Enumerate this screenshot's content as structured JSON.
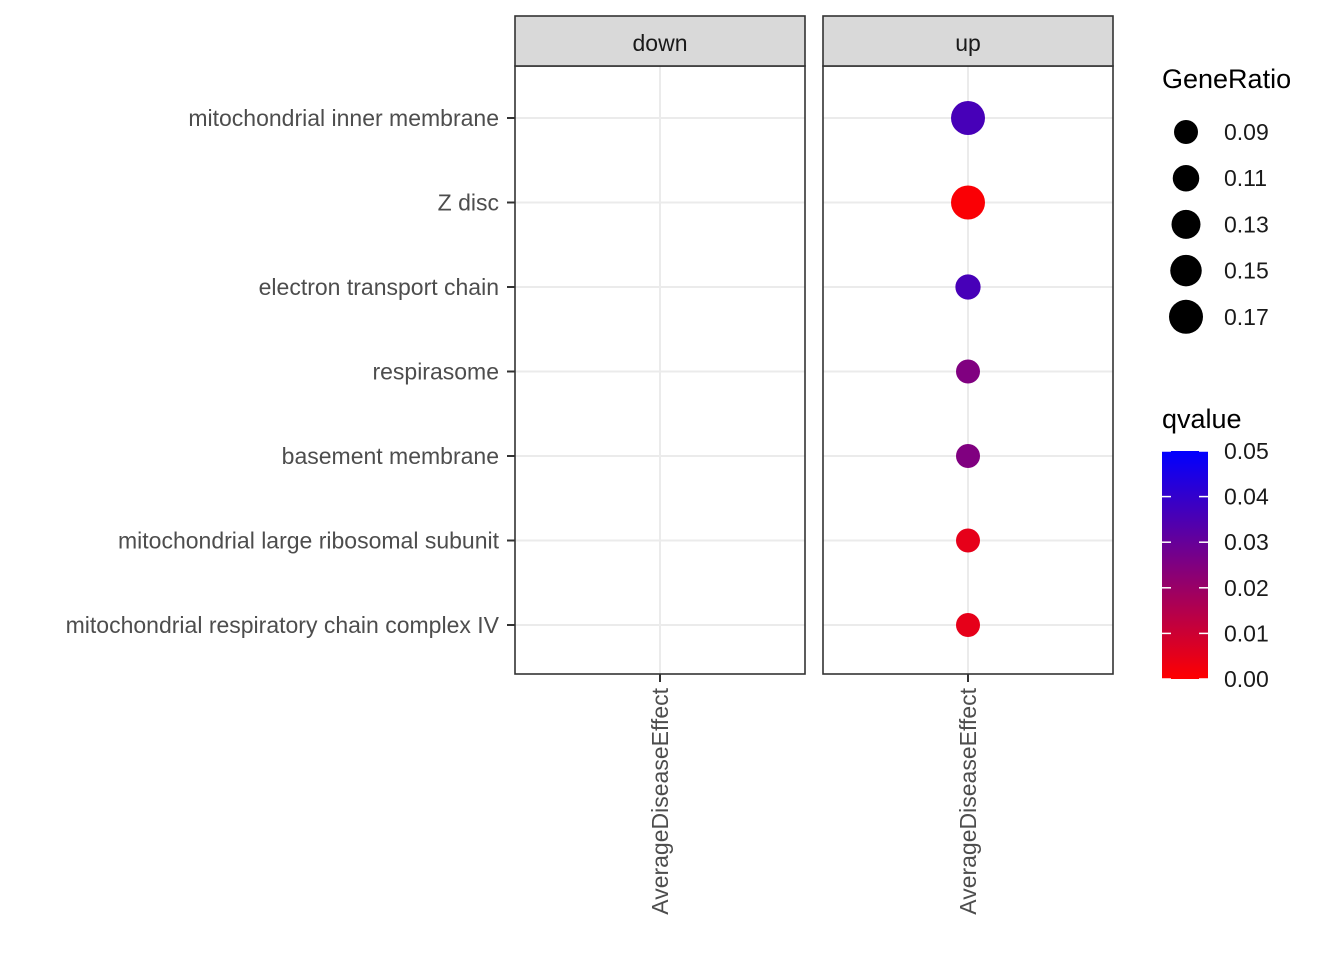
{
  "chart_data": {
    "type": "scatter",
    "panels": [
      {
        "name": "down",
        "x_label": "AverageDiseaseEffect"
      },
      {
        "name": "up",
        "x_label": "AverageDiseaseEffect"
      }
    ],
    "categories": [
      "mitochondrial inner membrane",
      "Z disc",
      "electron transport chain",
      "respirasome",
      "basement membrane",
      "mitochondrial large ribosomal subunit",
      "mitochondrial respiratory chain complex IV"
    ],
    "points": [
      {
        "panel": "up",
        "category": "mitochondrial inner membrane",
        "gene_ratio": 0.17,
        "qvalue": 0.036
      },
      {
        "panel": "up",
        "category": "Z disc",
        "gene_ratio": 0.17,
        "qvalue": 0.001
      },
      {
        "panel": "up",
        "category": "electron transport chain",
        "gene_ratio": 0.1,
        "qvalue": 0.036
      },
      {
        "panel": "up",
        "category": "respirasome",
        "gene_ratio": 0.09,
        "qvalue": 0.025
      },
      {
        "panel": "up",
        "category": "basement membrane",
        "gene_ratio": 0.09,
        "qvalue": 0.025
      },
      {
        "panel": "up",
        "category": "mitochondrial large ribosomal subunit",
        "gene_ratio": 0.09,
        "qvalue": 0.005
      },
      {
        "panel": "up",
        "category": "mitochondrial respiratory chain complex IV",
        "gene_ratio": 0.09,
        "qvalue": 0.005
      }
    ],
    "size_legend": {
      "title": "GeneRatio",
      "values": [
        0.09,
        0.11,
        0.13,
        0.15,
        0.17
      ],
      "labels": [
        "0.09",
        "0.11",
        "0.13",
        "0.15",
        "0.17"
      ]
    },
    "color_legend": {
      "title": "qvalue",
      "range": [
        0.0,
        0.05
      ],
      "ticks": [
        0.05,
        0.04,
        0.03,
        0.02,
        0.01,
        0.0
      ],
      "labels": [
        "0.05",
        "0.04",
        "0.03",
        "0.02",
        "0.01",
        "0.00"
      ],
      "low_color": "#ff0000",
      "high_color": "#0000ff"
    },
    "legend_position": "right",
    "grid": true,
    "strip_color": "#d9d9d9"
  }
}
